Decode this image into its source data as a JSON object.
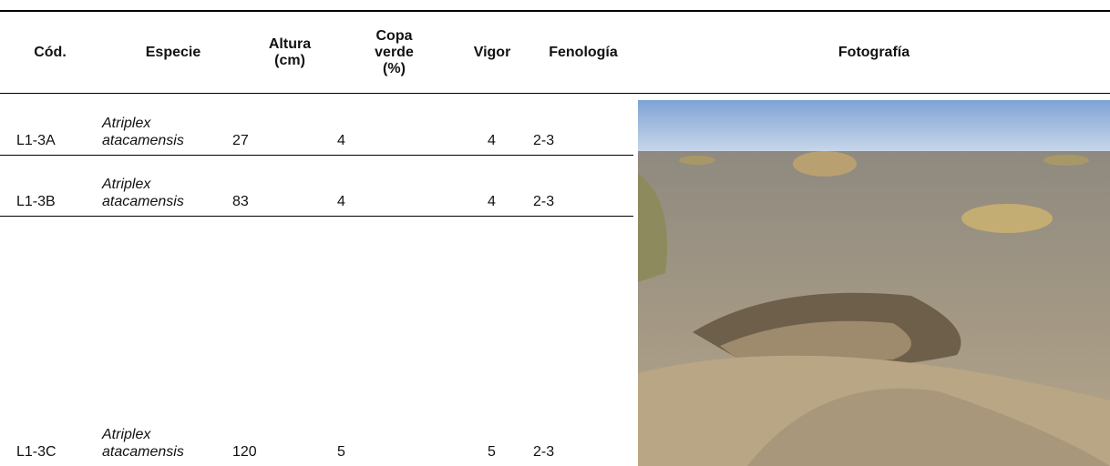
{
  "header": {
    "columns": [
      "Cód.",
      "Especie",
      "Altura (cm)",
      "Copa verde (%)",
      "Vigor",
      "Fenología",
      "Fotografía"
    ]
  },
  "table": {
    "rows": [
      [
        "L1-3A",
        "Atriplex atacamensis",
        "27",
        "4",
        "4",
        "2-3"
      ],
      [
        "L1-3B",
        "Atriplex atacamensis",
        "83",
        "4",
        "4",
        "2-3"
      ],
      [
        "L1-3C",
        "Atriplex atacamensis",
        "120",
        "5",
        "5",
        "2-3"
      ]
    ]
  }
}
